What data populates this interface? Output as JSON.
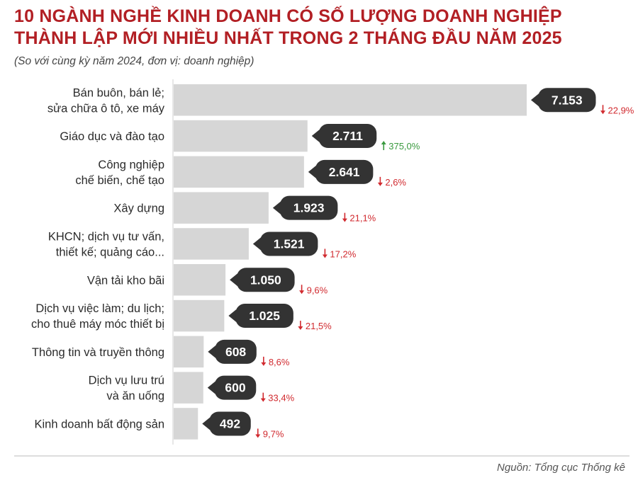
{
  "header": {
    "title_line1": "10 NGÀNH NGHỀ KINH DOANH CÓ SỐ LƯỢNG DOANH NGHIỆP",
    "title_line2": "THÀNH LẬP MỚI NHIỀU NHẤT TRONG 2 THÁNG ĐẦU NĂM 2025",
    "subtitle": "(So với cùng kỳ năm 2024, đơn vị: doanh nghiệp)"
  },
  "footer": {
    "source": "Nguồn: Tổng cục Thống kê"
  },
  "colors": {
    "title": "#b21f24",
    "bar": "#d6d6d6",
    "callout": "#333333",
    "down": "#d12a2f",
    "up": "#3a9a3f"
  },
  "chart_data": {
    "type": "bar",
    "orientation": "horizontal",
    "categories": [
      [
        "Bán buôn, bán lẻ;",
        "sửa chữa ô tô, xe máy"
      ],
      [
        "Giáo dục và đào tạo"
      ],
      [
        "Công nghiệp",
        "chế biến, chế tạo"
      ],
      [
        "Xây dựng"
      ],
      [
        "KHCN; dịch vụ tư vấn,",
        "thiết kế; quảng cáo..."
      ],
      [
        "Vận tải kho bãi"
      ],
      [
        "Dịch vụ việc làm; du lịch;",
        "cho thuê máy móc thiết bị"
      ],
      [
        "Thông tin và truyền thông"
      ],
      [
        "Dịch vụ lưu trú",
        "và ăn uống"
      ],
      [
        "Kinh doanh bất động sản"
      ]
    ],
    "values": [
      7153,
      2711,
      2641,
      1923,
      1521,
      1050,
      1025,
      608,
      600,
      492
    ],
    "value_labels": [
      "7.153",
      "2.711",
      "2.641",
      "1.923",
      "1.521",
      "1.050",
      "1.025",
      "608",
      "600",
      "492"
    ],
    "changes": [
      {
        "direction": "down",
        "label": "22,9%"
      },
      {
        "direction": "up",
        "label": "375,0%"
      },
      {
        "direction": "down",
        "label": "2,6%"
      },
      {
        "direction": "down",
        "label": "21,1%"
      },
      {
        "direction": "down",
        "label": "17,2%"
      },
      {
        "direction": "down",
        "label": "9,6%"
      },
      {
        "direction": "down",
        "label": "21,5%"
      },
      {
        "direction": "down",
        "label": "8,6%"
      },
      {
        "direction": "down",
        "label": "33,4%"
      },
      {
        "direction": "down",
        "label": "9,7%"
      }
    ],
    "xlim": [
      0,
      7153
    ]
  }
}
